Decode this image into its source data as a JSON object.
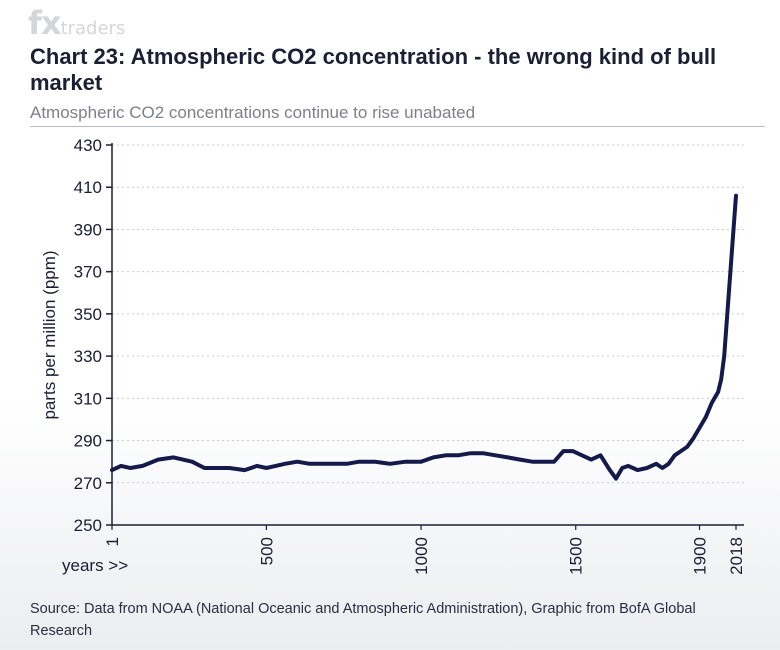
{
  "watermark": {
    "brand": "fx",
    "suffix": "traders"
  },
  "header": {
    "title": "Chart 23: Atmospheric CO2 concentration - the wrong kind of bull market",
    "subtitle": "Atmospheric CO2 concentrations continue to rise unabated"
  },
  "footer": {
    "source": "Source: Data from NOAA (National Oceanic and Atmospheric Administration), Graphic from BofA Global Research"
  },
  "colors": {
    "line": "#141a4a",
    "axis": "#1a1f33",
    "grid": "#c8cbd2",
    "text": "#1a1f33"
  },
  "chart_data": {
    "type": "line",
    "title": "Chart 23: Atmospheric CO2 concentration - the wrong kind of bull market",
    "subtitle": "Atmospheric CO2 concentrations continue to rise unabated",
    "xlabel": "years >>",
    "ylabel": "parts per million (ppm)",
    "xlim": [
      1,
      2018
    ],
    "ylim": [
      250,
      430
    ],
    "yticks": [
      250,
      270,
      290,
      310,
      330,
      350,
      370,
      390,
      410,
      430
    ],
    "xtick_labels": [
      "1",
      "500",
      "1000",
      "1500",
      "1900",
      "2018"
    ],
    "grid": true,
    "legend": "none",
    "series": [
      {
        "x": [
          1,
          30,
          60,
          100,
          150,
          200,
          230,
          260,
          300,
          330,
          380,
          430,
          470,
          500,
          530,
          560,
          600,
          640,
          680,
          720,
          760,
          800,
          850,
          900,
          950,
          1000,
          1040,
          1080,
          1120,
          1160,
          1200,
          1240,
          1280,
          1320,
          1360,
          1400,
          1430,
          1460,
          1490,
          1520,
          1550,
          1580,
          1610,
          1630,
          1650,
          1670,
          1700,
          1730,
          1760,
          1780,
          1800,
          1820,
          1840,
          1860,
          1880,
          1900,
          1920,
          1940,
          1960,
          1970,
          1980,
          1990,
          2000,
          2010,
          2018
        ],
        "y": [
          276,
          278,
          277,
          278,
          281,
          282,
          281,
          280,
          277,
          277,
          277,
          276,
          278,
          277,
          278,
          279,
          280,
          279,
          279,
          279,
          279,
          280,
          280,
          279,
          280,
          280,
          282,
          283,
          283,
          284,
          284,
          283,
          282,
          281,
          280,
          280,
          280,
          285,
          285,
          283,
          281,
          283,
          276,
          272,
          277,
          278,
          276,
          277,
          279,
          277,
          279,
          283,
          285,
          287,
          291,
          296,
          301,
          308,
          313,
          319,
          330,
          350,
          370,
          390,
          406
        ]
      }
    ]
  }
}
